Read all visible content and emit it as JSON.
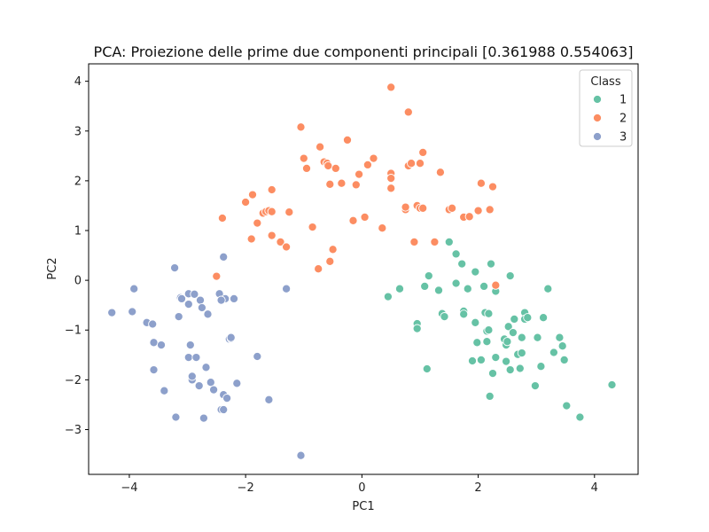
{
  "chart_data": {
    "type": "scatter",
    "title": "PCA: Proiezione delle prime due componenti principali [0.361988 0.554063]",
    "xlabel": "PC1",
    "ylabel": "PC2",
    "xlim": [
      -4.7,
      4.75
    ],
    "ylim": [
      -3.9,
      4.35
    ],
    "xticks": [
      -4,
      -2,
      0,
      2,
      4
    ],
    "yticks": [
      -3,
      -2,
      -1,
      0,
      1,
      2,
      3,
      4
    ],
    "grid": false,
    "legend": {
      "title": "Class",
      "placement": "top-right"
    },
    "series": [
      {
        "name": "1",
        "color": "#66c2a5",
        "points": [
          [
            0.45,
            -0.33
          ],
          [
            0.65,
            -0.17
          ],
          [
            0.95,
            -0.87
          ],
          [
            0.95,
            -0.97
          ],
          [
            1.08,
            -0.12
          ],
          [
            1.12,
            -1.78
          ],
          [
            1.15,
            0.09
          ],
          [
            1.32,
            -0.2
          ],
          [
            1.38,
            -0.67
          ],
          [
            1.42,
            -0.73
          ],
          [
            1.5,
            0.77
          ],
          [
            1.62,
            0.53
          ],
          [
            1.62,
            -0.06
          ],
          [
            1.72,
            0.33
          ],
          [
            1.75,
            -0.62
          ],
          [
            1.75,
            -0.68
          ],
          [
            1.82,
            -0.17
          ],
          [
            1.9,
            -1.62
          ],
          [
            1.95,
            -0.85
          ],
          [
            1.95,
            0.17
          ],
          [
            1.98,
            -1.25
          ],
          [
            2.05,
            -1.6
          ],
          [
            2.1,
            -0.12
          ],
          [
            2.12,
            -0.65
          ],
          [
            2.15,
            -1.02
          ],
          [
            2.15,
            -1.23
          ],
          [
            2.18,
            -0.67
          ],
          [
            2.18,
            -1.0
          ],
          [
            2.2,
            -2.33
          ],
          [
            2.22,
            0.33
          ],
          [
            2.25,
            -1.87
          ],
          [
            2.3,
            -0.22
          ],
          [
            2.3,
            -1.55
          ],
          [
            2.45,
            -1.18
          ],
          [
            2.48,
            -1.3
          ],
          [
            2.48,
            -1.63
          ],
          [
            2.5,
            -1.23
          ],
          [
            2.52,
            -0.93
          ],
          [
            2.55,
            0.09
          ],
          [
            2.55,
            -1.8
          ],
          [
            2.6,
            -1.05
          ],
          [
            2.62,
            -0.78
          ],
          [
            2.68,
            -1.49
          ],
          [
            2.72,
            -1.77
          ],
          [
            2.75,
            -1.15
          ],
          [
            2.75,
            -1.46
          ],
          [
            2.8,
            -0.65
          ],
          [
            2.8,
            -0.78
          ],
          [
            2.85,
            -0.75
          ],
          [
            2.98,
            -2.12
          ],
          [
            3.02,
            -1.15
          ],
          [
            3.08,
            -1.73
          ],
          [
            3.12,
            -0.75
          ],
          [
            3.2,
            -0.17
          ],
          [
            3.3,
            -1.45
          ],
          [
            3.4,
            -1.15
          ],
          [
            3.45,
            -1.32
          ],
          [
            3.48,
            -1.6
          ],
          [
            3.52,
            -2.52
          ],
          [
            3.75,
            -2.75
          ],
          [
            4.3,
            -2.1
          ]
        ]
      },
      {
        "name": "2",
        "color": "#fc8d62",
        "points": [
          [
            -2.5,
            0.08
          ],
          [
            -2.4,
            1.25
          ],
          [
            -2.0,
            1.57
          ],
          [
            -1.9,
            0.83
          ],
          [
            -1.88,
            1.72
          ],
          [
            -1.8,
            1.15
          ],
          [
            -1.7,
            1.35
          ],
          [
            -1.65,
            1.38
          ],
          [
            -1.6,
            1.4
          ],
          [
            -1.55,
            1.38
          ],
          [
            -1.55,
            0.9
          ],
          [
            -1.55,
            1.82
          ],
          [
            -1.4,
            0.77
          ],
          [
            -1.3,
            0.67
          ],
          [
            -1.25,
            1.37
          ],
          [
            -1.05,
            3.08
          ],
          [
            -1.0,
            2.45
          ],
          [
            -0.95,
            2.25
          ],
          [
            -0.85,
            1.07
          ],
          [
            -0.75,
            0.23
          ],
          [
            -0.72,
            2.68
          ],
          [
            -0.65,
            2.38
          ],
          [
            -0.6,
            2.35
          ],
          [
            -0.58,
            2.3
          ],
          [
            -0.55,
            1.93
          ],
          [
            -0.55,
            0.38
          ],
          [
            -0.5,
            0.62
          ],
          [
            -0.45,
            2.25
          ],
          [
            -0.35,
            1.95
          ],
          [
            -0.25,
            2.82
          ],
          [
            -0.15,
            1.2
          ],
          [
            -0.1,
            1.92
          ],
          [
            -0.05,
            2.13
          ],
          [
            0.05,
            1.27
          ],
          [
            0.1,
            2.32
          ],
          [
            0.2,
            2.45
          ],
          [
            0.35,
            1.05
          ],
          [
            0.5,
            3.88
          ],
          [
            0.5,
            2.15
          ],
          [
            0.5,
            2.15
          ],
          [
            0.5,
            1.85
          ],
          [
            0.5,
            2.05
          ],
          [
            0.75,
            1.42
          ],
          [
            0.75,
            1.47
          ],
          [
            0.8,
            3.38
          ],
          [
            0.8,
            2.3
          ],
          [
            0.85,
            2.35
          ],
          [
            0.9,
            0.77
          ],
          [
            0.95,
            1.5
          ],
          [
            1.0,
            2.35
          ],
          [
            1.0,
            1.45
          ],
          [
            1.05,
            1.45
          ],
          [
            1.05,
            2.57
          ],
          [
            1.25,
            0.77
          ],
          [
            1.35,
            2.17
          ],
          [
            1.5,
            1.42
          ],
          [
            1.55,
            1.45
          ],
          [
            1.75,
            1.27
          ],
          [
            1.85,
            1.28
          ],
          [
            2.0,
            1.4
          ],
          [
            2.05,
            1.95
          ],
          [
            2.2,
            1.42
          ],
          [
            2.25,
            1.88
          ],
          [
            2.3,
            -0.1
          ]
        ]
      },
      {
        "name": "3",
        "color": "#8da0cb",
        "points": [
          [
            -4.3,
            -0.65
          ],
          [
            -3.95,
            -0.63
          ],
          [
            -3.92,
            -0.17
          ],
          [
            -3.7,
            -0.85
          ],
          [
            -3.6,
            -0.88
          ],
          [
            -3.58,
            -1.8
          ],
          [
            -3.58,
            -1.25
          ],
          [
            -3.45,
            -1.3
          ],
          [
            -3.4,
            -2.22
          ],
          [
            -3.22,
            0.25
          ],
          [
            -3.2,
            -2.75
          ],
          [
            -3.15,
            -0.73
          ],
          [
            -3.12,
            -0.35
          ],
          [
            -3.1,
            -0.37
          ],
          [
            -2.98,
            -0.27
          ],
          [
            -2.98,
            -0.48
          ],
          [
            -2.98,
            -1.55
          ],
          [
            -2.95,
            -1.3
          ],
          [
            -2.92,
            -2.0
          ],
          [
            -2.92,
            -1.93
          ],
          [
            -2.88,
            -0.28
          ],
          [
            -2.85,
            -1.55
          ],
          [
            -2.8,
            -2.12
          ],
          [
            -2.78,
            -0.4
          ],
          [
            -2.75,
            -0.55
          ],
          [
            -2.72,
            -2.77
          ],
          [
            -2.68,
            -1.75
          ],
          [
            -2.65,
            -0.68
          ],
          [
            -2.6,
            -2.05
          ],
          [
            -2.55,
            -2.2
          ],
          [
            -2.45,
            -0.27
          ],
          [
            -2.42,
            -2.6
          ],
          [
            -2.38,
            -2.3
          ],
          [
            -2.38,
            -2.6
          ],
          [
            -2.38,
            0.47
          ],
          [
            -2.35,
            -0.37
          ],
          [
            -2.32,
            -2.37
          ],
          [
            -2.28,
            -1.18
          ],
          [
            -2.25,
            -1.17
          ],
          [
            -2.15,
            -2.07
          ],
          [
            -2.2,
            -0.37
          ],
          [
            -1.8,
            -1.53
          ],
          [
            -1.6,
            -2.4
          ],
          [
            -1.3,
            -0.17
          ],
          [
            -1.05,
            -3.52
          ],
          [
            -2.25,
            -1.15
          ],
          [
            -2.42,
            -0.4
          ]
        ]
      }
    ]
  }
}
